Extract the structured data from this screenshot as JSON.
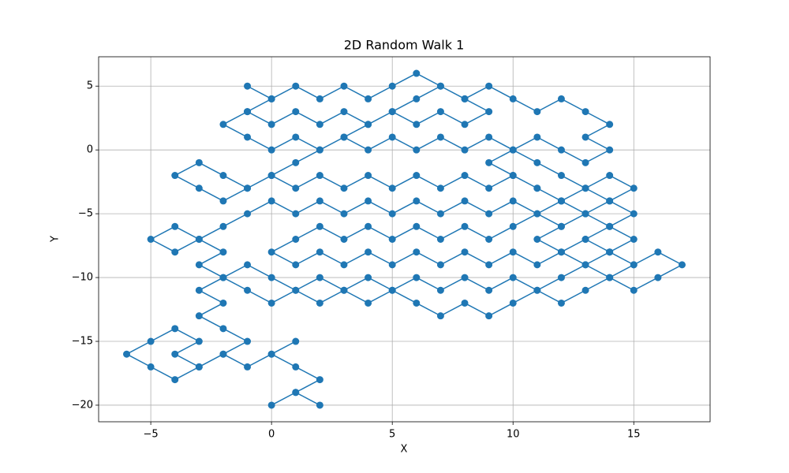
{
  "chart_data": {
    "type": "line",
    "title": "2D Random Walk 1",
    "xlabel": "X",
    "ylabel": "Y",
    "x": [
      0,
      1,
      2,
      1,
      2,
      1,
      0,
      1,
      0,
      -1,
      -2,
      -3,
      -4,
      -5,
      -6,
      -5,
      -4,
      -3,
      -4,
      -3,
      -2,
      -1,
      -2,
      -3,
      -2,
      -3,
      -2,
      -1,
      0,
      1,
      2,
      3,
      4,
      5,
      6,
      7,
      8,
      9,
      10,
      11,
      12,
      13,
      14,
      15,
      16,
      17,
      16,
      15,
      14,
      15,
      14,
      15,
      14,
      15,
      14,
      13,
      12,
      11,
      10,
      9,
      10,
      11,
      12,
      13,
      12,
      11,
      12,
      13,
      12,
      11,
      10,
      9,
      8,
      7,
      6,
      5,
      4,
      3,
      2,
      1,
      0,
      -1,
      -2,
      -3,
      -2,
      -3,
      -4,
      -5,
      -4,
      -3,
      -2,
      -1,
      0,
      1,
      2,
      3,
      4,
      5,
      6,
      7,
      8,
      9,
      10,
      11,
      12,
      13,
      14,
      13,
      14,
      13,
      14,
      13,
      14,
      15,
      14,
      13,
      12,
      11,
      10,
      9,
      8,
      7,
      6,
      5,
      4,
      3,
      2,
      1,
      0,
      1,
      2,
      3,
      4,
      5,
      6,
      7,
      8,
      9,
      10,
      11,
      12,
      13,
      12,
      11,
      10,
      9,
      8,
      7,
      6,
      5,
      4,
      3,
      2,
      1,
      0,
      -1,
      -2,
      -3,
      -4,
      -3,
      -2,
      -1,
      0,
      1,
      2,
      3,
      4,
      5,
      6,
      7,
      8,
      9,
      10,
      11,
      12,
      13,
      14,
      13,
      14,
      13,
      12,
      11,
      10,
      9,
      8,
      7,
      6,
      5,
      4,
      3,
      2,
      1,
      0,
      -1,
      -2,
      -1,
      0,
      1,
      2,
      3,
      4,
      5,
      6,
      7,
      8,
      9,
      8,
      7,
      6,
      5,
      4,
      3,
      2,
      1,
      0,
      -1,
      0,
      -1
    ],
    "y": [
      -20,
      -19,
      -20,
      -19,
      -18,
      -17,
      -16,
      -15,
      -16,
      -17,
      -16,
      -17,
      -18,
      -17,
      -16,
      -15,
      -14,
      -15,
      -16,
      -17,
      -16,
      -15,
      -14,
      -13,
      -12,
      -11,
      -10,
      -11,
      -12,
      -11,
      -12,
      -11,
      -12,
      -11,
      -12,
      -13,
      -12,
      -13,
      -12,
      -11,
      -12,
      -11,
      -10,
      -11,
      -10,
      -9,
      -8,
      -9,
      -8,
      -7,
      -6,
      -5,
      -4,
      -3,
      -2,
      -3,
      -2,
      -1,
      0,
      -1,
      -2,
      -3,
      -4,
      -5,
      -6,
      -7,
      -8,
      -9,
      -10,
      -11,
      -10,
      -11,
      -10,
      -11,
      -10,
      -11,
      -10,
      -11,
      -10,
      -11,
      -10,
      -9,
      -10,
      -9,
      -8,
      -7,
      -8,
      -7,
      -6,
      -7,
      -6,
      -5,
      -4,
      -5,
      -4,
      -5,
      -4,
      -5,
      -4,
      -5,
      -4,
      -5,
      -4,
      -5,
      -4,
      -3,
      -4,
      -5,
      -6,
      -7,
      -8,
      -9,
      -10,
      -9,
      -8,
      -7,
      -8,
      -9,
      -8,
      -9,
      -8,
      -9,
      -8,
      -9,
      -8,
      -9,
      -8,
      -9,
      -8,
      -7,
      -6,
      -7,
      -6,
      -7,
      -6,
      -7,
      -6,
      -7,
      -6,
      -5,
      -6,
      -5,
      -4,
      -3,
      -2,
      -3,
      -2,
      -3,
      -2,
      -3,
      -2,
      -3,
      -2,
      -3,
      -2,
      -3,
      -2,
      -1,
      -2,
      -3,
      -4,
      -3,
      -2,
      -1,
      0,
      1,
      2,
      3,
      4,
      5,
      4,
      5,
      4,
      3,
      4,
      3,
      2,
      1,
      0,
      -1,
      0,
      1,
      0,
      1,
      0,
      1,
      0,
      1,
      0,
      1,
      0,
      1,
      0,
      1,
      2,
      3,
      4,
      5,
      4,
      5,
      4,
      5,
      6,
      5,
      4,
      3,
      2,
      3,
      2,
      3,
      2,
      3,
      2,
      3,
      2,
      3,
      4,
      5
    ],
    "color": "#1f77b4",
    "marker": true,
    "grid": true,
    "xlim": [
      -7.16,
      18.16
    ],
    "ylim": [
      -21.3,
      7.3
    ],
    "xticks": [
      {
        "value": -5,
        "label": "−5"
      },
      0,
      5,
      10,
      15
    ],
    "yticks": [
      {
        "value": -20,
        "label": "−20"
      },
      {
        "value": -15,
        "label": "−15"
      },
      {
        "value": -10,
        "label": "−10"
      },
      {
        "value": -5,
        "label": "−5"
      },
      0,
      5
    ]
  }
}
